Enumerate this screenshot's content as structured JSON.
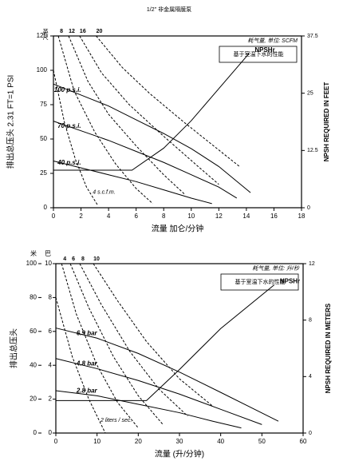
{
  "header": {
    "title": "1/2\" 非金属隔膜泵"
  },
  "chart_data": [
    {
      "type": "line",
      "xlabel": "流量 加仑/分钟",
      "ylabel": "排出总压头 2.31 FT=1 PSI",
      "y_unit": "英尺",
      "y2label": "NPSH REQUIRED IN FEET",
      "air_note": "耗气量, 单位: SCFM",
      "box_note": "基于室温下水的性能",
      "xlim": [
        0,
        18
      ],
      "xticks": [
        0,
        2,
        4,
        6,
        8,
        10,
        12,
        14,
        16,
        18
      ],
      "ylim": [
        0,
        125
      ],
      "yticks": [
        0,
        25,
        50,
        75,
        100,
        125
      ],
      "y2lim": [
        0,
        37.5
      ],
      "y2ticks": [
        0,
        12.5,
        25,
        37.5
      ],
      "series": [
        {
          "name": "100 p.s.i.",
          "style": "solid",
          "color": "#000000",
          "x": [
            0,
            2,
            4,
            6,
            8,
            10,
            12,
            14.3
          ],
          "values": [
            90,
            82,
            74,
            64,
            54,
            43,
            30,
            11
          ]
        },
        {
          "name": "70 p.s.i.",
          "style": "solid",
          "color": "#000000",
          "x": [
            0,
            2,
            4,
            6,
            8,
            10,
            12,
            13.3
          ],
          "values": [
            63,
            56,
            49,
            41,
            33,
            24,
            15,
            7
          ]
        },
        {
          "name": "40 p.s.i.",
          "style": "solid",
          "color": "#000000",
          "x": [
            0,
            2,
            4,
            6,
            8,
            10,
            11.5
          ],
          "values": [
            34,
            29,
            24,
            19,
            13,
            7,
            3
          ]
        },
        {
          "name": "4 s.c.f.m.",
          "style": "dashed",
          "color": "#000000",
          "x": [
            0,
            0.8,
            1.6,
            2.4,
            3.2
          ],
          "values": [
            100,
            62,
            35,
            15,
            2
          ]
        },
        {
          "name": "8",
          "style": "dashed",
          "color": "#000000",
          "x": [
            0.35,
            1.5,
            3,
            4.5,
            6,
            7.2
          ],
          "values": [
            125,
            85,
            55,
            32,
            14,
            3
          ]
        },
        {
          "name": "12",
          "style": "dashed",
          "color": "#000000",
          "x": [
            1.1,
            2.5,
            4,
            6,
            8,
            9.5
          ],
          "values": [
            125,
            92,
            68,
            45,
            24,
            10
          ]
        },
        {
          "name": "16",
          "style": "dashed",
          "color": "#000000",
          "x": [
            1.9,
            3.5,
            5.5,
            8,
            10.5,
            12
          ],
          "values": [
            125,
            98,
            75,
            52,
            30,
            17
          ]
        },
        {
          "name": "20",
          "style": "dashed",
          "color": "#000000",
          "x": [
            3.1,
            5,
            7,
            9.5,
            12,
            13.5
          ],
          "values": [
            125,
            102,
            83,
            62,
            42,
            30
          ]
        },
        {
          "name": "NPSHr",
          "style": "solid",
          "color": "#000000",
          "axis": "y2",
          "x": [
            0,
            5.7,
            8,
            10,
            12,
            14.2
          ],
          "values": [
            8.2,
            8.2,
            13,
            19,
            26,
            33.7
          ]
        }
      ]
    },
    {
      "type": "line",
      "xlabel": "流量 (升/分钟)",
      "ylabel": "排出总压头",
      "y_unit": "巴",
      "ym_unit": "米",
      "y2label": "NPSH REQUIRED IN METERS",
      "air_note": "耗气量, 单位: 升/秒",
      "box_note": "基于室温下水的性能",
      "xlim": [
        0,
        60
      ],
      "xticks": [
        0,
        10,
        20,
        30,
        40,
        50,
        60
      ],
      "ylim": [
        0,
        10
      ],
      "yticks": [
        0,
        2,
        4,
        6,
        8,
        10
      ],
      "ymlim": [
        0,
        100
      ],
      "ymticks": [
        0,
        20,
        40,
        60,
        80,
        100
      ],
      "y2lim": [
        0,
        12
      ],
      "y2ticks": [
        0,
        4,
        8,
        12
      ],
      "series": [
        {
          "name": "6.9 bar",
          "style": "solid",
          "color": "#000000",
          "x": [
            0,
            10,
            20,
            30,
            40,
            54
          ],
          "values": [
            6.2,
            5.6,
            4.7,
            3.6,
            2.4,
            0.7
          ]
        },
        {
          "name": "4.8 bar",
          "style": "solid",
          "color": "#000000",
          "x": [
            0,
            10,
            20,
            30,
            40,
            50
          ],
          "values": [
            4.4,
            3.8,
            3.1,
            2.3,
            1.4,
            0.5
          ]
        },
        {
          "name": "2.8 bar",
          "style": "solid",
          "color": "#000000",
          "x": [
            0,
            10,
            20,
            30,
            38,
            45
          ],
          "values": [
            2.5,
            2.2,
            1.7,
            1.2,
            0.7,
            0.3
          ]
        },
        {
          "name": "2 liters / sec.",
          "style": "dashed",
          "color": "#000000",
          "x": [
            0,
            4,
            8,
            12
          ],
          "values": [
            8,
            4.5,
            2,
            0
          ]
        },
        {
          "name": "4",
          "style": "dashed",
          "color": "#000000",
          "x": [
            1.4,
            5,
            10,
            15,
            20
          ],
          "values": [
            10,
            7,
            4,
            1.8,
            0.3
          ]
        },
        {
          "name": "6",
          "style": "dashed",
          "color": "#000000",
          "x": [
            3.5,
            8,
            14,
            20,
            26
          ],
          "values": [
            10,
            7.4,
            4.5,
            2.2,
            0.5
          ]
        },
        {
          "name": "8",
          "style": "dashed",
          "color": "#000000",
          "x": [
            5.8,
            11,
            18,
            25,
            32
          ],
          "values": [
            10,
            7.6,
            4.8,
            2.6,
            1
          ]
        },
        {
          "name": "10",
          "style": "dashed",
          "color": "#000000",
          "x": [
            9.1,
            15,
            22,
            30,
            38
          ],
          "values": [
            10,
            7.8,
            5.4,
            3.2,
            1.6
          ]
        },
        {
          "name": "NPSHr",
          "style": "solid",
          "color": "#000000",
          "axis": "y2",
          "x": [
            0,
            22,
            30,
            40,
            53
          ],
          "values": [
            2.3,
            2.3,
            4.5,
            7.4,
            10.5
          ]
        }
      ]
    }
  ]
}
